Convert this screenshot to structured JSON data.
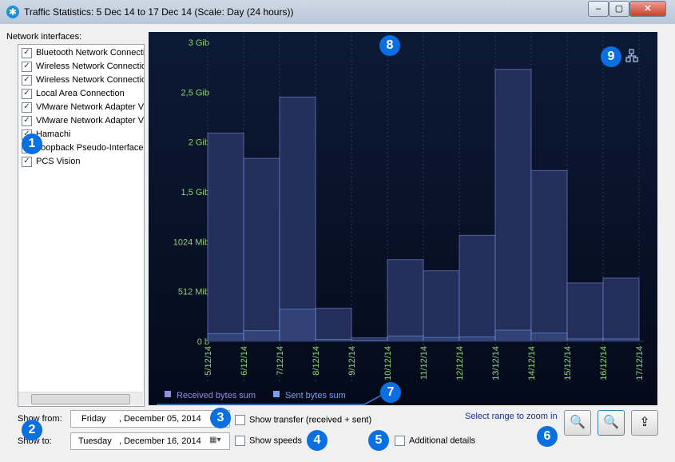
{
  "window": {
    "title": "Traffic Statistics: 5 Dec 14 to 17 Dec 14 (Scale: Day (24 hours))"
  },
  "interfaces_label": "Network interfaces:",
  "interfaces": [
    "Bluetooth Network Connecti",
    "Wireless Network Connectio",
    "Wireless Network Connectio",
    "Local Area Connection",
    "VMware Network Adapter VI",
    "VMware Network Adapter VI",
    "Hamachi",
    "Loopback Pseudo-Interface",
    "PCS Vision"
  ],
  "chart_data": {
    "type": "bar",
    "categories": [
      "5/12/14",
      "6/12/14",
      "7/12/14",
      "8/12/14",
      "9/12/14",
      "10/12/14",
      "11/12/14",
      "12/12/14",
      "13/12/14",
      "14/12/14",
      "15/12/14",
      "16/12/14",
      "17/12/14"
    ],
    "series": [
      {
        "name": "Received bytes sum",
        "color": "#8e92e6",
        "values": [
          2140,
          1880,
          2510,
          340,
          35,
          840,
          725,
          1090,
          2795,
          1755,
          600,
          650,
          null
        ]
      },
      {
        "name": "Sent bytes sum",
        "color": "#6fa3ee",
        "values": [
          80,
          110,
          330,
          20,
          10,
          55,
          40,
          45,
          115,
          85,
          25,
          25,
          null
        ]
      }
    ],
    "ylim": [
      0,
      3072
    ],
    "yticks": [
      {
        "value": 0,
        "label": "0 b"
      },
      {
        "value": 512,
        "label": "512 Mib"
      },
      {
        "value": 1024,
        "label": "1024 Mib"
      },
      {
        "value": 1536,
        "label": "1,5 Gib"
      },
      {
        "value": 2048,
        "label": "2 Gib"
      },
      {
        "value": 2560,
        "label": "2,5 Gib"
      },
      {
        "value": 3072,
        "label": "3 Gib"
      }
    ]
  },
  "controls": {
    "show_from_label": "Show from:",
    "show_from_day": "Friday",
    "show_from_date": ", December 05, 2014",
    "show_to_label": "Show to:",
    "show_to_day": "Tuesday",
    "show_to_date": ", December 16, 2014",
    "show_transfer": "Show transfer (received + sent)",
    "show_speeds": "Show speeds",
    "additional_details": "Additional details",
    "zoom_hint": "Select range to zoom in"
  },
  "callouts": [
    1,
    2,
    3,
    4,
    5,
    6,
    7,
    8,
    9
  ]
}
